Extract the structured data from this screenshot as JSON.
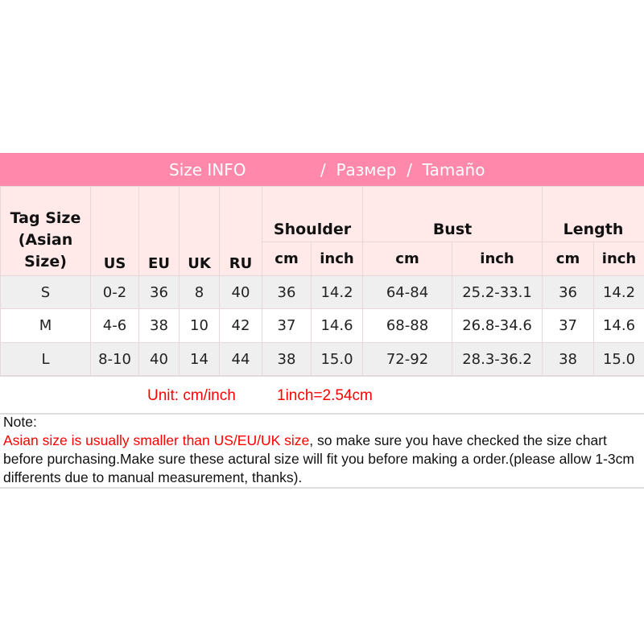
{
  "title": {
    "part1": "Size INFO",
    "part2": "/  Размер  /  Tamaño"
  },
  "headers": {
    "tag": "Tag Size (Asian Size)",
    "us": "US",
    "eu": "EU",
    "uk": "UK",
    "ru": "RU",
    "shoulder": "Shoulder",
    "bust": "Bust",
    "length": "Length",
    "cm": "cm",
    "inch": "inch"
  },
  "rows": [
    [
      "S",
      "0-2",
      "36",
      "8",
      "40",
      "36",
      "14.2",
      "64-84",
      "25.2-33.1",
      "36",
      "14.2"
    ],
    [
      "M",
      "4-6",
      "38",
      "10",
      "42",
      "37",
      "14.6",
      "68-88",
      "26.8-34.6",
      "37",
      "14.6"
    ],
    [
      "L",
      "8-10",
      "40",
      "14",
      "44",
      "38",
      "15.0",
      "72-92",
      "28.3-36.2",
      "38",
      "15.0"
    ]
  ],
  "unit": {
    "unit": "Unit: cm/inch",
    "conversion": "1inch=2.54cm"
  },
  "note": {
    "label": "Note:",
    "highlight": "Asian size is usually smaller than US/EU/UK size",
    "text": ", so make sure you have checked the size chart before purchasing.Make sure these actural size will fit you before making a order.(please allow 1-3cm differents due to manual measurement, thanks)."
  },
  "colors": {
    "header": "#ff88ab",
    "subheader": "#ffe9e9",
    "stripe": "#efefef",
    "warning": "#ff0000"
  }
}
